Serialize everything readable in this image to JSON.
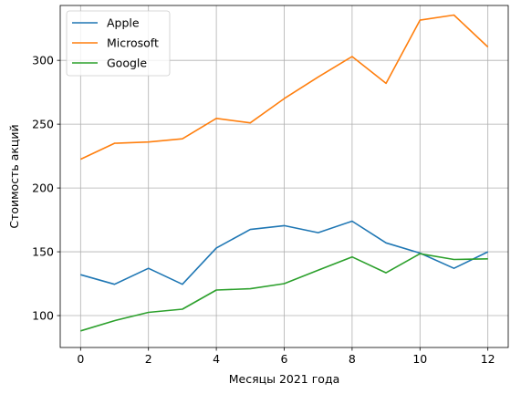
{
  "chart_data": {
    "type": "line",
    "title": "",
    "xlabel": "Месяцы 2021 года",
    "ylabel": "Стоимость акций",
    "x": [
      0,
      1,
      2,
      3,
      4,
      5,
      6,
      7,
      8,
      9,
      10,
      11,
      12
    ],
    "xlim": [
      -0.6,
      12.6
    ],
    "ylim": [
      75,
      343
    ],
    "xticks": [
      0,
      2,
      4,
      6,
      8,
      10,
      12
    ],
    "yticks": [
      100,
      150,
      200,
      250,
      300
    ],
    "grid": true,
    "legend_position": "upper-left",
    "series": [
      {
        "name": "Apple",
        "color": "#1f77b4",
        "values": [
          132,
          124.5,
          137,
          124.5,
          153,
          167.5,
          170.5,
          165,
          174,
          157,
          149,
          137,
          150
        ]
      },
      {
        "name": "Microsoft",
        "color": "#ff7f0e",
        "values": [
          222.5,
          235,
          236,
          238.5,
          254.5,
          251,
          270,
          287,
          303,
          282,
          331.5,
          335.5,
          310.5
        ]
      },
      {
        "name": "Google",
        "color": "#2ca02c",
        "values": [
          88,
          96,
          102.5,
          105,
          120,
          121,
          125,
          135.5,
          146,
          133.5,
          148.5,
          144,
          144.5
        ]
      }
    ]
  }
}
